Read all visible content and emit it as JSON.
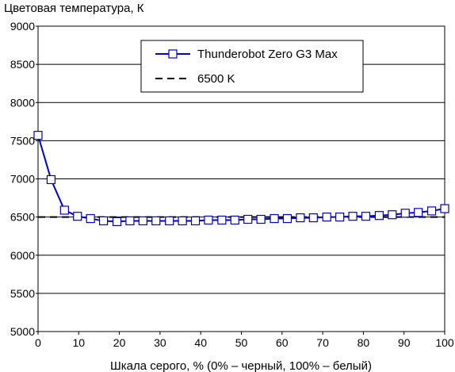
{
  "chart_data": {
    "type": "line",
    "title": "",
    "ylabel": "Цветовая температура, К",
    "xlabel": "Шкала серого, % (0% – черный, 100% – белый)",
    "xlim": [
      0,
      100
    ],
    "ylim": [
      5000,
      9000
    ],
    "x_ticks": [
      0,
      10,
      20,
      30,
      40,
      50,
      60,
      70,
      80,
      90,
      100
    ],
    "y_ticks": [
      5000,
      5500,
      6000,
      6500,
      7000,
      7500,
      8000,
      8500,
      9000
    ],
    "grid": "horizontal",
    "legend_position": "top-center",
    "series": [
      {
        "name": "Thunderobot Zero G3 Max",
        "color": "#0000cc",
        "marker": "open-square",
        "x": [
          0,
          3.2,
          6.5,
          9.7,
          12.9,
          16.1,
          19.4,
          22.6,
          25.8,
          29.0,
          32.3,
          35.5,
          38.7,
          41.9,
          45.2,
          48.4,
          51.6,
          54.8,
          58.1,
          61.3,
          64.5,
          67.7,
          71.0,
          74.2,
          77.4,
          80.6,
          83.9,
          87.1,
          90.3,
          93.5,
          96.8,
          100
        ],
        "y": [
          7570,
          6990,
          6590,
          6510,
          6480,
          6450,
          6440,
          6450,
          6450,
          6450,
          6450,
          6450,
          6450,
          6460,
          6460,
          6460,
          6470,
          6470,
          6480,
          6480,
          6490,
          6490,
          6500,
          6500,
          6510,
          6510,
          6520,
          6530,
          6550,
          6560,
          6580,
          6610
        ]
      },
      {
        "name": "6500 K",
        "color": "#000000",
        "style": "dashed",
        "x": [
          0,
          100
        ],
        "y": [
          6500,
          6500
        ]
      }
    ]
  }
}
